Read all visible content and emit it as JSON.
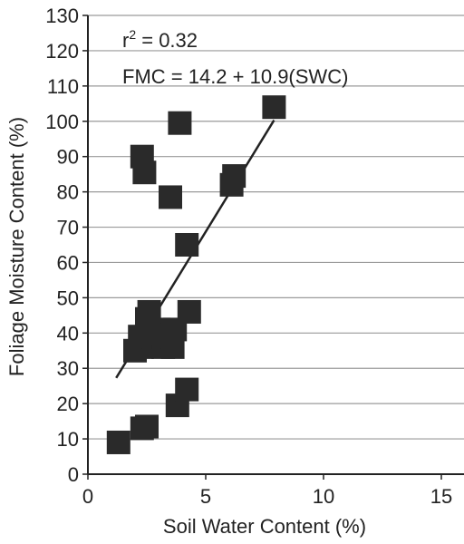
{
  "chart_data": {
    "type": "scatter",
    "title": "",
    "xlabel": "Soil Water Content (%)",
    "ylabel": "Foliage Moisture Content (%)",
    "xlim": [
      0,
      15
    ],
    "ylim": [
      0,
      130
    ],
    "xticks": [
      0,
      5,
      10,
      15
    ],
    "yticks": [
      0,
      10,
      20,
      30,
      40,
      50,
      60,
      70,
      80,
      90,
      100,
      110,
      120,
      130
    ],
    "grid": "horizontal",
    "annotations": {
      "r2_prefix": "r",
      "r2_sup": "2",
      "r2_rest": " = 0.32",
      "equation": "FMC = 14.2 + 10.9(SWC)"
    },
    "points": [
      {
        "x": 1.3,
        "y": 9
      },
      {
        "x": 2.3,
        "y": 13
      },
      {
        "x": 2.5,
        "y": 13.5
      },
      {
        "x": 3.8,
        "y": 19.5
      },
      {
        "x": 4.2,
        "y": 24
      },
      {
        "x": 2.0,
        "y": 35
      },
      {
        "x": 2.3,
        "y": 36
      },
      {
        "x": 2.8,
        "y": 37
      },
      {
        "x": 3.2,
        "y": 36
      },
      {
        "x": 3.6,
        "y": 36
      },
      {
        "x": 2.2,
        "y": 39
      },
      {
        "x": 2.6,
        "y": 40
      },
      {
        "x": 3.0,
        "y": 41
      },
      {
        "x": 3.4,
        "y": 39
      },
      {
        "x": 3.7,
        "y": 41
      },
      {
        "x": 2.5,
        "y": 44
      },
      {
        "x": 2.6,
        "y": 46
      },
      {
        "x": 4.3,
        "y": 46
      },
      {
        "x": 4.2,
        "y": 65
      },
      {
        "x": 3.5,
        "y": 78.5
      },
      {
        "x": 2.4,
        "y": 85.5
      },
      {
        "x": 2.3,
        "y": 90
      },
      {
        "x": 3.9,
        "y": 99.5
      },
      {
        "x": 6.1,
        "y": 82
      },
      {
        "x": 6.2,
        "y": 84.5
      },
      {
        "x": 7.9,
        "y": 104
      }
    ],
    "regression": {
      "intercept": 14.2,
      "slope": 10.9,
      "x_start": 1.2,
      "x_end": 7.9
    },
    "colors": {
      "marker": "#2a2a2a",
      "line": "#222222",
      "grid": "#9a9a9a",
      "axis": "#222222"
    }
  }
}
